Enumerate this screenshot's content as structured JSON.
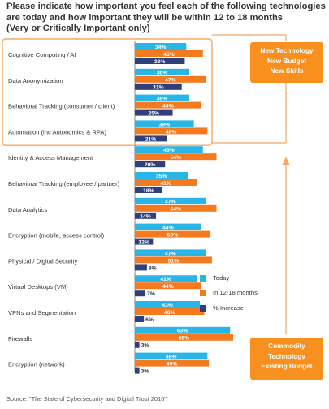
{
  "header": {
    "title_lines": [
      "Please indicate how important you feel each of the following technologies",
      "are today and how important they will be within 12 to 18 months",
      "(Very or Critically Important only)"
    ]
  },
  "callouts": {
    "top_lines": [
      "New Technology",
      "New Budget",
      "New Skills"
    ],
    "bottom_lines": [
      "Commodity",
      "Technology",
      "Existing Budget"
    ]
  },
  "source": "Source: \"The State of Cybersecurity and Digital Trust 2016\"",
  "colors": {
    "today": "#29B6E6",
    "in_12_18": "#F47A20",
    "increase": "#2E3F7C",
    "highlight_box": "#F7A760",
    "callout_fill": "#F7901E"
  },
  "chart_data": {
    "type": "bar",
    "orientation": "horizontal",
    "categories": [
      "Cognitive Computing / AI",
      "Data Anonymization",
      "Behavioral Tracking (consumer / client)",
      "Automation (inc Autonomics & RPA)",
      "Identity & Access Management",
      "Behavioral Tracking (employee / partner)",
      "Data Analytics",
      "Encryption (mobile, access control)",
      "Physical / Digital Security",
      "Virtual Desktops (VM)",
      "VPNs and Segmentation",
      "Firewalls",
      "Encryption (network)"
    ],
    "series": [
      {
        "name": "Today",
        "values": [
          34,
          36,
          36,
          39,
          45,
          35,
          47,
          44,
          47,
          41,
          43,
          63,
          48
        ]
      },
      {
        "name": "In 12-18 months",
        "values": [
          45,
          47,
          44,
          48,
          54,
          41,
          54,
          50,
          51,
          44,
          46,
          65,
          49
        ]
      },
      {
        "name": "% Increase",
        "values": [
          33,
          31,
          25,
          21,
          20,
          18,
          14,
          12,
          8,
          7,
          6,
          3,
          3
        ]
      }
    ],
    "value_labels": [
      [
        "34%",
        "36%",
        "36%",
        "39%",
        "45%",
        "35%",
        "47%",
        "44%",
        "47%",
        "41%",
        "43%",
        "63%",
        "48%"
      ],
      [
        "45%",
        "47%",
        "44%",
        "48%",
        "54%",
        "41%",
        "54%",
        "50%",
        "51%",
        "44%",
        "46%",
        "65%",
        "49%"
      ],
      [
        "33%",
        "31%",
        "25%",
        "21%",
        "20%",
        "18%",
        "14%",
        "12%",
        "8%",
        "7%",
        "6%",
        "3%",
        "3%"
      ]
    ],
    "highlighted_categories": 4,
    "xlim": [
      0,
      65
    ],
    "grid": false,
    "legend_position": "right"
  }
}
